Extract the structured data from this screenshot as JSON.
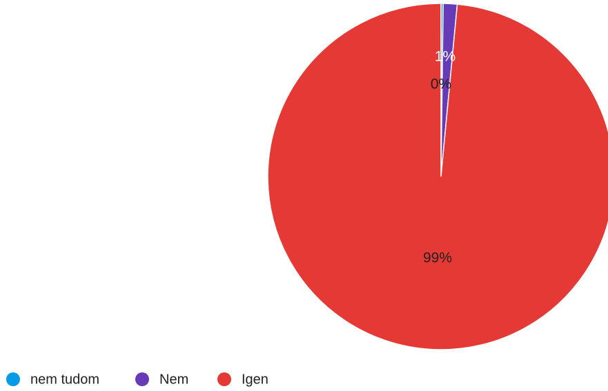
{
  "chart_data": {
    "type": "pie",
    "title": "",
    "slices": [
      {
        "name": "nem tudom",
        "value": 0.2,
        "label": "0%",
        "color": "#039be5",
        "label_color": "#212121"
      },
      {
        "name": "Nem",
        "value": 1.3,
        "label": "1%",
        "color": "#673ab7",
        "label_color": "#ffffff"
      },
      {
        "name": "Igen",
        "value": 98.5,
        "label": "99%",
        "color": "#e53935",
        "label_color": "#212121"
      }
    ],
    "legend_position": "bottom-left"
  }
}
